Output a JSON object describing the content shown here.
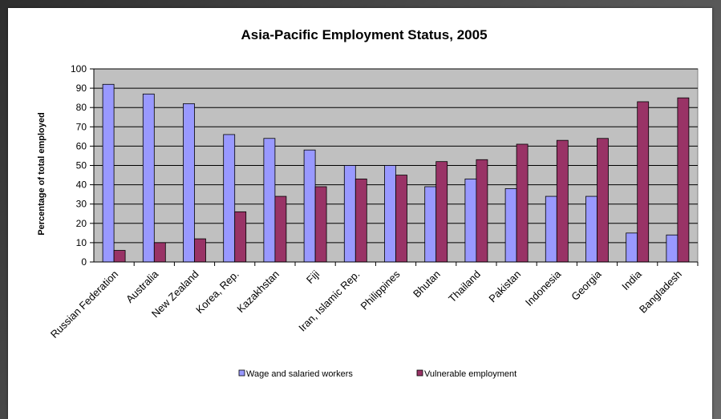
{
  "chart_data": {
    "type": "bar",
    "title": "Asia-Pacific Employment Status, 2005",
    "xlabel": "",
    "ylabel": "Percentage of total employed",
    "ylim": [
      0,
      100
    ],
    "yticks": [
      0,
      10,
      20,
      30,
      40,
      50,
      60,
      70,
      80,
      90,
      100
    ],
    "grid": true,
    "legend_position": "bottom",
    "categories": [
      "Russian Federation",
      "Australia",
      "New Zealand",
      "Korea, Rep.",
      "Kazakhstan",
      "Fiji",
      "Iran, Islamic Rep.",
      "Philippines",
      "Bhutan",
      "Thailand",
      "Pakistan",
      "Indonesia",
      "Georgia",
      "India",
      "Bangladesh"
    ],
    "series": [
      {
        "name": "Wage and salaried workers",
        "color": "#9999ff",
        "values": [
          92,
          87,
          82,
          66,
          64,
          58,
          50,
          50,
          39,
          43,
          38,
          34,
          34,
          15,
          14
        ]
      },
      {
        "name": "Vulnerable employment",
        "color": "#993366",
        "values": [
          6,
          10,
          12,
          26,
          34,
          39,
          43,
          45,
          52,
          53,
          61,
          63,
          64,
          83,
          85
        ]
      }
    ],
    "plot_background": "#c0c0c0"
  }
}
